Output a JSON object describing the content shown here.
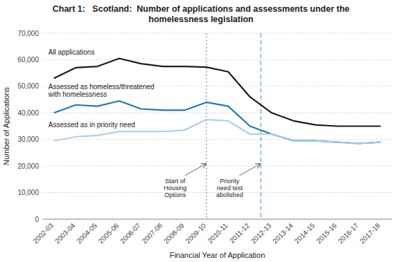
{
  "chart_data": {
    "type": "line",
    "title": "Chart 1:   Scotland:  Number of applications and assessments under the\nhomelessness legislation",
    "x_label": "Financial Year of Application",
    "y_label": "Number of Applications",
    "categories": [
      "2002-03",
      "2003-04",
      "2004-05",
      "2005-06",
      "2006-07",
      "2007-08",
      "2008-09",
      "2009-10",
      "2010-11",
      "2011-12",
      "2012-13",
      "2013-14",
      "2014-15",
      "2015-16",
      "2016-17",
      "2017-18"
    ],
    "series": [
      {
        "name": "All applications",
        "color": "#1a1a1a",
        "values": [
          53000,
          57000,
          57500,
          60500,
          58500,
          57500,
          57500,
          57200,
          55500,
          46000,
          40000,
          37000,
          35500,
          35000,
          35000,
          35000
        ]
      },
      {
        "name": "Assessed as homeless/threatened\nwith homelessness",
        "color": "#1f78b4",
        "values": [
          40000,
          43000,
          42500,
          44500,
          41500,
          41000,
          41000,
          44000,
          42500,
          35000,
          32000,
          29500,
          29500,
          29000,
          28500,
          29000
        ]
      },
      {
        "name": "Assessed as in priority need",
        "color": "#a6cee3",
        "values": [
          29500,
          31000,
          31500,
          33000,
          33000,
          33000,
          33500,
          37500,
          37000,
          32000,
          32000,
          29500,
          29500,
          29000,
          28500,
          29000
        ]
      }
    ],
    "annotations": [
      {
        "text": "Start of\nHousing\nOptions",
        "x": 7,
        "color": "#6baed6",
        "line_style": "dotted"
      },
      {
        "text": "Priority\nneed test\nabolished",
        "x": 9.5,
        "color": "#6baed6",
        "line_style": "dashed"
      }
    ],
    "ylim": [
      0,
      70000
    ],
    "yticks": [
      0,
      {
        "value": 10000,
        "label": "10,000"
      },
      {
        "value": 20000,
        "label": "20,000"
      },
      {
        "value": 30000,
        "label": "30,000"
      },
      {
        "value": 40000,
        "label": "40,000"
      },
      {
        "value": 50000,
        "label": "50,000"
      },
      {
        "value": 60000,
        "label": "60,000"
      },
      {
        "value": 70000,
        "label": "70,000"
      }
    ],
    "grid": true
  }
}
